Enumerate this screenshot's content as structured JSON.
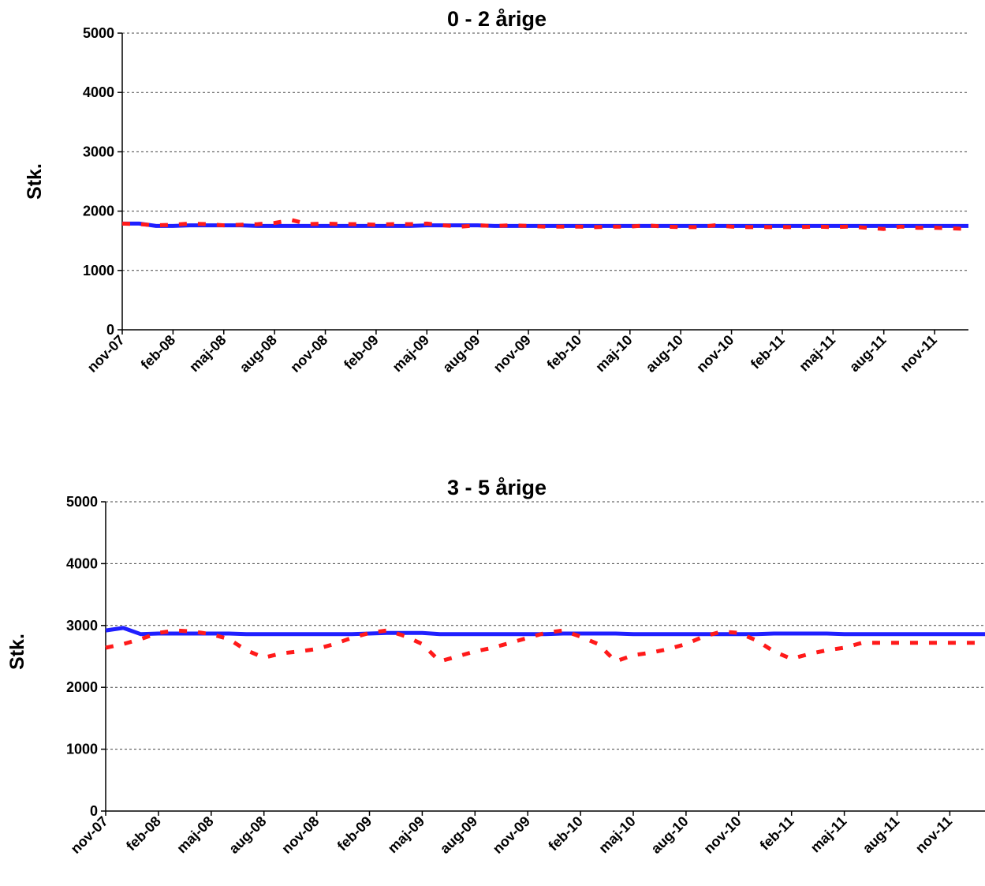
{
  "chart_data": [
    {
      "type": "line",
      "title": "0 - 2 årige",
      "xlabel": "",
      "ylabel": "Stk.",
      "ylim": [
        0,
        5000
      ],
      "yticks": [
        "0",
        "1000",
        "2000",
        "3000",
        "4000",
        "5000"
      ],
      "grid": "horizontal dashed",
      "legend": "none",
      "xtick_labels": [
        "nov-07",
        "feb-08",
        "maj-08",
        "aug-08",
        "nov-08",
        "feb-09",
        "maj-09",
        "aug-09",
        "nov-09",
        "feb-10",
        "maj-10",
        "aug-10",
        "nov-10",
        "feb-11",
        "maj-11",
        "aug-11",
        "nov-11"
      ],
      "n_points": 51,
      "series": [
        {
          "color": "#1f1fff",
          "style": "solid",
          "values": [
            1790,
            1790,
            1750,
            1750,
            1760,
            1760,
            1760,
            1760,
            1750,
            1750,
            1750,
            1750,
            1750,
            1750,
            1750,
            1750,
            1750,
            1750,
            1760,
            1760,
            1760,
            1760,
            1750,
            1750,
            1750,
            1750,
            1750,
            1750,
            1750,
            1750,
            1750,
            1750,
            1750,
            1750,
            1750,
            1750,
            1750,
            1750,
            1750,
            1750,
            1750,
            1750,
            1750,
            1750,
            1750,
            1750,
            1750,
            1750,
            1750,
            1750,
            1750
          ]
        },
        {
          "color": "#ff1a1a",
          "style": "dashed",
          "values": [
            1790,
            1780,
            1760,
            1770,
            1790,
            1780,
            1760,
            1770,
            1780,
            1800,
            1850,
            1780,
            1790,
            1780,
            1780,
            1770,
            1780,
            1780,
            1790,
            1760,
            1740,
            1760,
            1750,
            1760,
            1750,
            1740,
            1740,
            1740,
            1730,
            1740,
            1740,
            1760,
            1740,
            1730,
            1730,
            1760,
            1740,
            1730,
            1730,
            1730,
            1730,
            1740,
            1730,
            1740,
            1720,
            1700,
            1740,
            1720,
            1720,
            1710,
            1700
          ]
        }
      ]
    },
    {
      "type": "line",
      "title": "3 - 5 årige",
      "xlabel": "",
      "ylabel": "Stk.",
      "ylim": [
        0,
        5000
      ],
      "yticks": [
        "0",
        "1000",
        "2000",
        "3000",
        "4000",
        "5000"
      ],
      "grid": "horizontal dashed",
      "legend": "none",
      "xtick_labels": [
        "nov-07",
        "feb-08",
        "maj-08",
        "aug-08",
        "nov-08",
        "feb-09",
        "maj-09",
        "aug-09",
        "nov-09",
        "feb-10",
        "maj-10",
        "aug-10",
        "nov-10",
        "feb-11",
        "maj-11",
        "aug-11",
        "nov-11"
      ],
      "n_points": 51,
      "series": [
        {
          "color": "#1f1fff",
          "style": "solid",
          "values": [
            2920,
            2960,
            2860,
            2870,
            2870,
            2870,
            2870,
            2870,
            2860,
            2860,
            2860,
            2860,
            2860,
            2860,
            2860,
            2870,
            2880,
            2880,
            2880,
            2860,
            2860,
            2860,
            2860,
            2860,
            2860,
            2860,
            2870,
            2870,
            2870,
            2870,
            2860,
            2860,
            2860,
            2860,
            2860,
            2860,
            2860,
            2860,
            2870,
            2870,
            2870,
            2870,
            2860,
            2860,
            2860,
            2860,
            2860,
            2860,
            2860,
            2860,
            2860
          ]
        },
        {
          "color": "#ff1a1a",
          "style": "dashed",
          "values": [
            2640,
            2700,
            2780,
            2880,
            2920,
            2900,
            2860,
            2780,
            2600,
            2480,
            2550,
            2580,
            2620,
            2700,
            2800,
            2880,
            2920,
            2830,
            2700,
            2420,
            2500,
            2580,
            2640,
            2720,
            2800,
            2880,
            2920,
            2820,
            2700,
            2420,
            2520,
            2560,
            2620,
            2700,
            2820,
            2900,
            2880,
            2760,
            2580,
            2460,
            2540,
            2600,
            2640,
            2720,
            2720,
            2720,
            2720,
            2720,
            2720,
            2720,
            2720
          ]
        }
      ]
    }
  ]
}
